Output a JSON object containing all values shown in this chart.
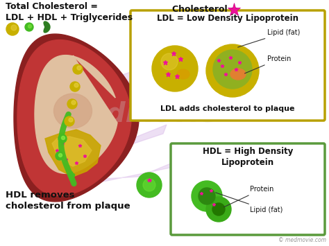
{
  "bg_color": "#ffffff",
  "title_text": "Total Cholesterol =\nLDL + HDL + Triglycerides",
  "cholesterol_label": "Cholesterol = ",
  "ldl_box_title": "LDL = Low Density Lipoprotein",
  "ldl_box_sub": "LDL adds cholesterol to plaque",
  "ldl_lipid_label": "Lipid (fat)",
  "ldl_protein_label": "Protein",
  "hdl_box_title": "HDL = High Density\nLipoprotein",
  "hdl_protein_label": "Protein",
  "hdl_lipid_label": "Lipid (fat)",
  "hdl_bottom_text": "HDL removes\ncholesterol from plaque",
  "watermark": "© medmovie.com",
  "ldl_box_edge": "#b8a000",
  "hdl_box_edge": "#5a9a3c",
  "arrow_color": "#44bb22",
  "ldl_ball_color": "#c8b400",
  "hdl_ball_color": "#44bb22",
  "cholesterol_star_color": "#ee1199",
  "text_dark": "#111111",
  "vessel_outer": "#a03030",
  "vessel_mid": "#c04040",
  "vessel_inner": "#e8c8a8",
  "plaque_color": "#c8a800",
  "plaque_inner": "#d4b820"
}
